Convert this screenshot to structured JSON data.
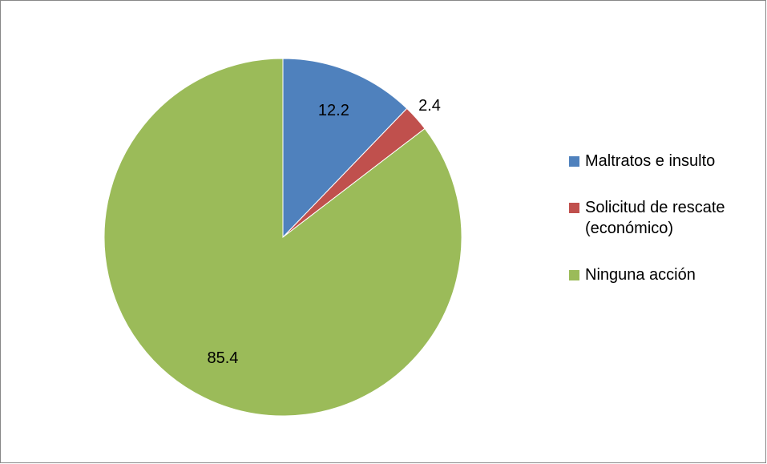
{
  "chart_data": {
    "type": "pie",
    "categories": [
      "Maltratos e insulto",
      "Solicitud de rescate (económico)",
      "Ninguna acción"
    ],
    "values": [
      12.2,
      2.4,
      85.4
    ],
    "colors": [
      "#4f81bd",
      "#c0504d",
      "#9bbb59"
    ],
    "legend": "right"
  }
}
